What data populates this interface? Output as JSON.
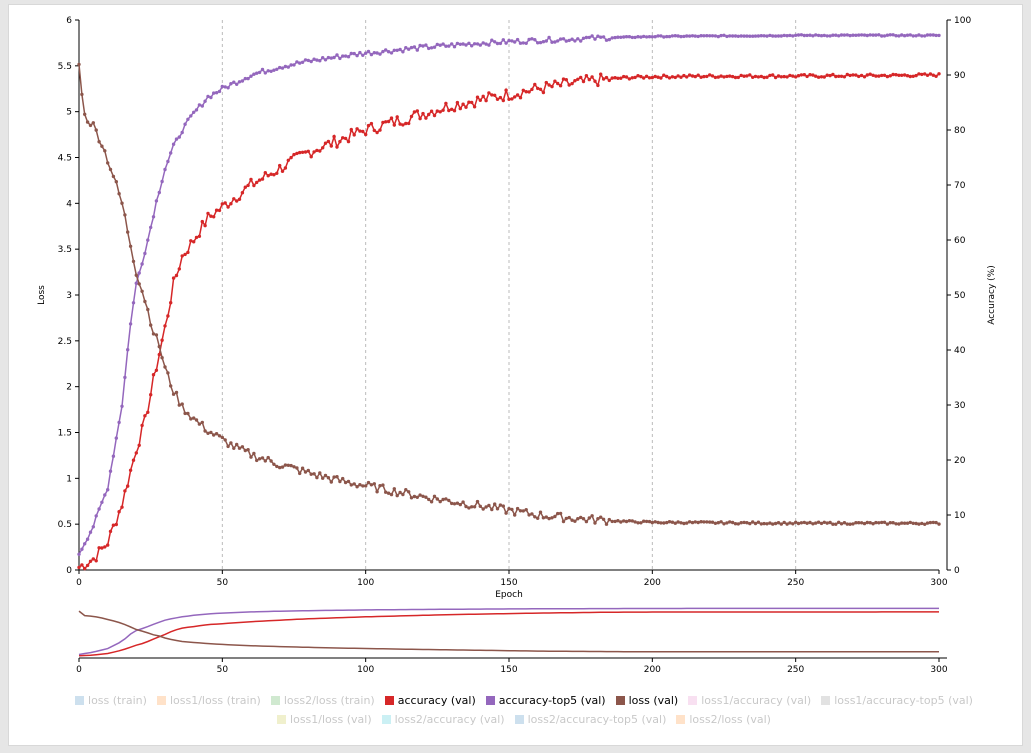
{
  "chart_data": {
    "type": "line",
    "xlabel": "Epoch",
    "ylabel_left": "Loss",
    "ylabel_right": "Accuracy (%)",
    "xlim": [
      0,
      300
    ],
    "ylim_left": [
      0,
      6
    ],
    "ylim_right": [
      0,
      100
    ],
    "x_ticks": [
      0,
      50,
      100,
      150,
      200,
      250,
      300
    ],
    "y_left_ticks": [
      "0",
      "0.5",
      "1",
      "1.5",
      "2",
      "2.5",
      "3",
      "3.5",
      "4",
      "4.5",
      "5",
      "5.5",
      "6"
    ],
    "y_right_ticks": [
      "0",
      "10",
      "20",
      "30",
      "40",
      "50",
      "60",
      "70",
      "80",
      "90",
      "100"
    ],
    "vertical_grid": "dashed at x ticks",
    "series": [
      {
        "name": "accuracy (val)",
        "axis": "right",
        "color": "#d62728",
        "points": [
          [
            0,
            0.5
          ],
          [
            5,
            2
          ],
          [
            10,
            5
          ],
          [
            15,
            12
          ],
          [
            20,
            22
          ],
          [
            23,
            27
          ],
          [
            27,
            37
          ],
          [
            30,
            44
          ],
          [
            33,
            52
          ],
          [
            36,
            57
          ],
          [
            40,
            60
          ],
          [
            45,
            64
          ],
          [
            50,
            66
          ],
          [
            55,
            68
          ],
          [
            60,
            70
          ],
          [
            70,
            73
          ],
          [
            80,
            76
          ],
          [
            90,
            78
          ],
          [
            100,
            80
          ],
          [
            110,
            81.5
          ],
          [
            120,
            83
          ],
          [
            130,
            84.5
          ],
          [
            140,
            85.5
          ],
          [
            150,
            86.5
          ],
          [
            160,
            87.5
          ],
          [
            170,
            88.3
          ],
          [
            180,
            89
          ],
          [
            190,
            89.5
          ],
          [
            200,
            89.7
          ],
          [
            220,
            89.8
          ],
          [
            250,
            89.8
          ],
          [
            280,
            89.9
          ],
          [
            300,
            90
          ]
        ]
      },
      {
        "name": "accuracy-top5 (val)",
        "axis": "right",
        "color": "#9467bd",
        "points": [
          [
            0,
            3
          ],
          [
            5,
            8
          ],
          [
            10,
            15
          ],
          [
            15,
            30
          ],
          [
            18,
            45
          ],
          [
            20,
            52
          ],
          [
            24,
            60
          ],
          [
            27,
            67
          ],
          [
            30,
            73
          ],
          [
            33,
            77
          ],
          [
            36,
            80
          ],
          [
            40,
            83
          ],
          [
            45,
            86
          ],
          [
            50,
            87.5
          ],
          [
            60,
            90
          ],
          [
            70,
            91.5
          ],
          [
            80,
            92.5
          ],
          [
            90,
            93.3
          ],
          [
            100,
            94
          ],
          [
            120,
            95
          ],
          [
            140,
            95.8
          ],
          [
            160,
            96.3
          ],
          [
            180,
            96.7
          ],
          [
            200,
            97
          ],
          [
            250,
            97.2
          ],
          [
            300,
            97.2
          ]
        ]
      },
      {
        "name": "loss (val)",
        "axis": "left",
        "color": "#8c564b",
        "points": [
          [
            0,
            5.5
          ],
          [
            2,
            4.95
          ],
          [
            5,
            4.85
          ],
          [
            8,
            4.65
          ],
          [
            12,
            4.3
          ],
          [
            15,
            4.0
          ],
          [
            18,
            3.55
          ],
          [
            20,
            3.25
          ],
          [
            23,
            2.95
          ],
          [
            26,
            2.6
          ],
          [
            28,
            2.45
          ],
          [
            30,
            2.2
          ],
          [
            33,
            1.95
          ],
          [
            36,
            1.78
          ],
          [
            40,
            1.65
          ],
          [
            45,
            1.52
          ],
          [
            50,
            1.42
          ],
          [
            55,
            1.33
          ],
          [
            60,
            1.26
          ],
          [
            70,
            1.15
          ],
          [
            80,
            1.06
          ],
          [
            90,
            0.98
          ],
          [
            100,
            0.92
          ],
          [
            110,
            0.86
          ],
          [
            120,
            0.8
          ],
          [
            130,
            0.75
          ],
          [
            140,
            0.7
          ],
          [
            150,
            0.65
          ],
          [
            160,
            0.6
          ],
          [
            170,
            0.57
          ],
          [
            180,
            0.55
          ],
          [
            190,
            0.53
          ],
          [
            200,
            0.52
          ],
          [
            250,
            0.51
          ],
          [
            300,
            0.51
          ]
        ]
      }
    ]
  },
  "navigator": {
    "x_ticks": [
      0,
      50,
      100,
      150,
      200,
      250,
      300
    ]
  },
  "legend": [
    {
      "label": "loss (train)",
      "color": "#1f77b4",
      "active": false
    },
    {
      "label": "loss1/loss (train)",
      "color": "#ff7f0e",
      "active": false
    },
    {
      "label": "loss2/loss (train)",
      "color": "#2ca02c",
      "active": false
    },
    {
      "label": "accuracy (val)",
      "color": "#d62728",
      "active": true
    },
    {
      "label": "accuracy-top5 (val)",
      "color": "#9467bd",
      "active": true
    },
    {
      "label": "loss (val)",
      "color": "#8c564b",
      "active": true
    },
    {
      "label": "loss1/accuracy (val)",
      "color": "#e377c2",
      "active": false
    },
    {
      "label": "loss1/accuracy-top5 (val)",
      "color": "#7f7f7f",
      "active": false
    },
    {
      "label": "loss1/loss (val)",
      "color": "#bcbd22",
      "active": false
    },
    {
      "label": "loss2/accuracy (val)",
      "color": "#17becf",
      "active": false
    },
    {
      "label": "loss2/accuracy-top5 (val)",
      "color": "#1f77b4",
      "active": false
    },
    {
      "label": "loss2/loss (val)",
      "color": "#ff7f0e",
      "active": false
    }
  ]
}
